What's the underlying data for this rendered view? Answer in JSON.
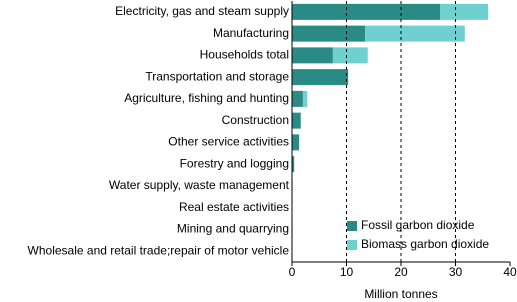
{
  "chart_data": {
    "type": "stacked-bar-horizontal",
    "categories": [
      "Electricity, gas and steam supply",
      "Manufacturing",
      "Households total",
      "Transportation and storage",
      "Agriculture, fishing and hunting",
      "Construction",
      "Other service activities",
      "Forestry and logging",
      "Water supply, waste management",
      "Real estate activities",
      "Mining and quarrying",
      "Wholesale and retail trade;repair of motor vehicle"
    ],
    "series": [
      {
        "name": "Fossil garbon dioxide",
        "color": "#2a8a86",
        "values": [
          27.2,
          13.4,
          7.5,
          10.3,
          2.0,
          1.6,
          1.3,
          0.4,
          0.1,
          0.0,
          0.1,
          0.0
        ]
      },
      {
        "name": "Biomass garbon dioxide",
        "color": "#70d0d0",
        "values": [
          8.8,
          18.3,
          6.4,
          0.0,
          0.8,
          0.0,
          0.0,
          0.0,
          0.0,
          0.0,
          0.0,
          0.0
        ]
      }
    ],
    "xlabel": "Million tonnes",
    "xlim": [
      0,
      40
    ],
    "xticks": [
      0,
      10,
      20,
      30,
      40
    ],
    "grid": true,
    "legend": "bottom-right"
  }
}
